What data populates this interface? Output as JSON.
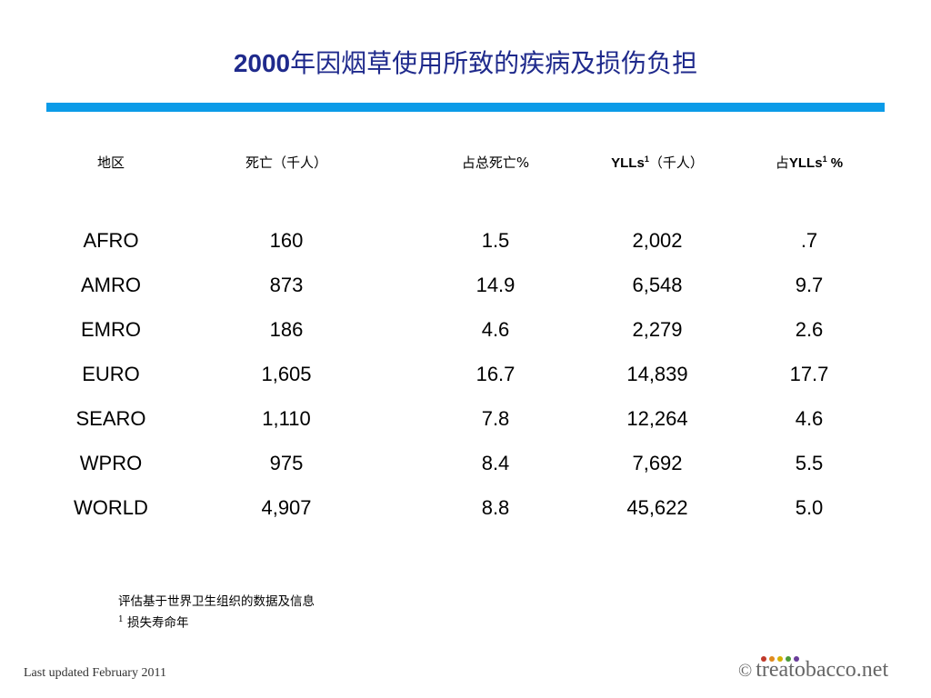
{
  "title": {
    "year": "2000",
    "text": "年因烟草使用所致的疾病及损伤负担"
  },
  "table": {
    "headers": {
      "region": "地区",
      "deaths": "死亡（千人）",
      "death_pct": "占总死亡%",
      "ylls_label": "YLLs",
      "ylls_sup": "1",
      "ylls_unit": "（千人）",
      "ylls_pct_prefix": "占",
      "ylls_pct_label": "YLLs",
      "ylls_pct_sup": "1",
      "ylls_pct_suffix": " %"
    },
    "rows": [
      {
        "region": "AFRO",
        "deaths": "160",
        "death_pct": "1.5",
        "ylls": "2,002",
        "ylls_pct": ".7"
      },
      {
        "region": "AMRO",
        "deaths": "873",
        "death_pct": "14.9",
        "ylls": "6,548",
        "ylls_pct": "9.7"
      },
      {
        "region": "EMRO",
        "deaths": "186",
        "death_pct": "4.6",
        "ylls": "2,279",
        "ylls_pct": "2.6"
      },
      {
        "region": "EURO",
        "deaths": "1,605",
        "death_pct": "16.7",
        "ylls": "14,839",
        "ylls_pct": "17.7"
      },
      {
        "region": "SEARO",
        "deaths": "1,110",
        "death_pct": "7.8",
        "ylls": "12,264",
        "ylls_pct": "4.6"
      },
      {
        "region": "WPRO",
        "deaths": "975",
        "death_pct": "8.4",
        "ylls": "7,692",
        "ylls_pct": "5.5"
      },
      {
        "region": "WORLD",
        "deaths": "4,907",
        "death_pct": "8.8",
        "ylls": "45,622",
        "ylls_pct": "5.0"
      }
    ]
  },
  "notes": {
    "line1": "评估基于世界卫生组织的数据及信息",
    "line2_sup": "1",
    "line2": " 损失寿命年"
  },
  "footer": {
    "updated": "Last updated February 2011",
    "copyright": "©",
    "brand": "treatobacco.net",
    "dot_colors": [
      "#c0392b",
      "#e08a1e",
      "#d4b000",
      "#4a9a3a",
      "#6a3d9a"
    ]
  },
  "colors": {
    "title": "#1f2a8c",
    "rule": "#0b9be8"
  }
}
